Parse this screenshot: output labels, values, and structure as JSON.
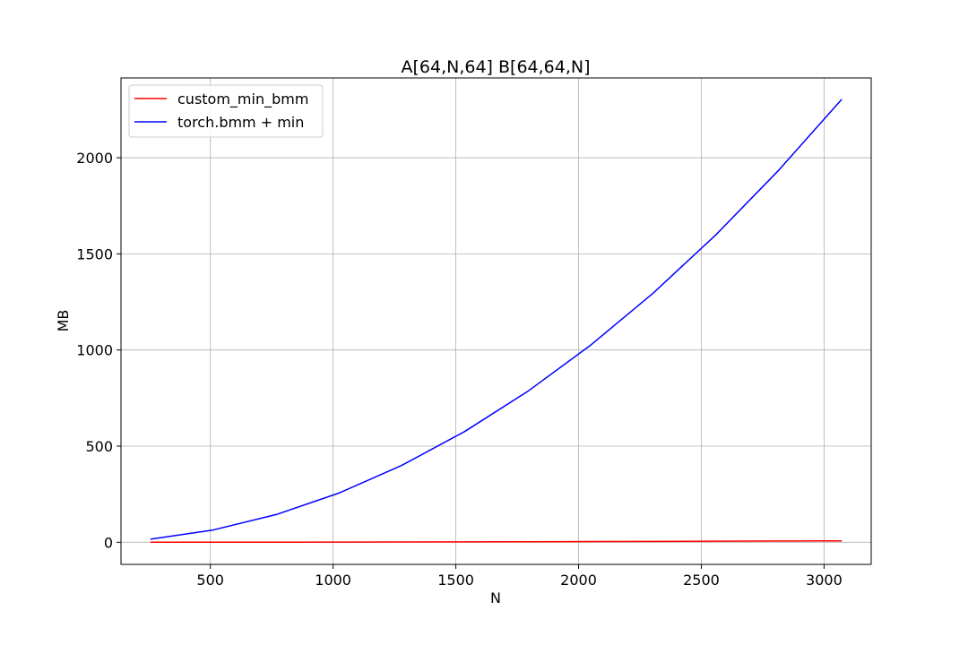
{
  "chart_data": {
    "type": "line",
    "title": "A[64,N,64] B[64,64,N]",
    "xlabel": "N",
    "ylabel": "MB",
    "xlim": [
      136,
      3192
    ],
    "ylim": [
      -115,
      2415
    ],
    "xticks": [
      500,
      1000,
      1500,
      2000,
      2500,
      3000
    ],
    "yticks": [
      0,
      500,
      1000,
      1500,
      2000
    ],
    "grid": true,
    "legend_position": "upper-left",
    "x": [
      256,
      512,
      768,
      1024,
      1280,
      1536,
      1792,
      2048,
      2304,
      2560,
      2816,
      3072
    ],
    "series": [
      {
        "name": "custom_min_bmm",
        "color": "#ff0000",
        "values": [
          0.1,
          0.3,
          0.6,
          1.0,
          1.5,
          2.1,
          2.8,
          3.6,
          4.5,
          5.5,
          6.5,
          7.5
        ]
      },
      {
        "name": "torch.bmm + min",
        "color": "#0000ff",
        "values": [
          16,
          64,
          144,
          256,
          400,
          576,
          784,
          1024,
          1296,
          1600,
          1936,
          2304
        ]
      }
    ]
  }
}
